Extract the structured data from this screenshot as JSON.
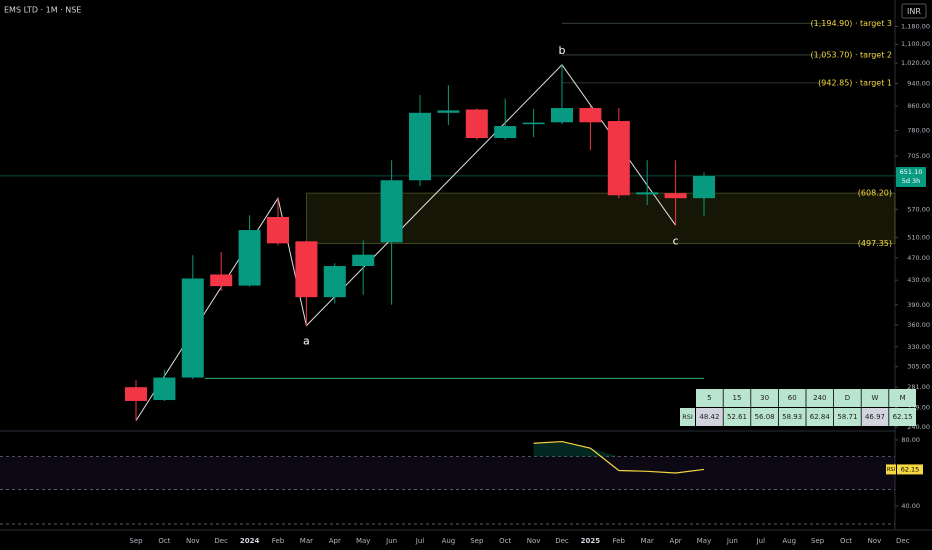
{
  "chart_data": {
    "type": "candlestick",
    "title": "EMS LTD · 1M · NSE",
    "currency": "INR",
    "yscale": "log",
    "ylim": [
      237,
      1311
    ],
    "yticks": [
      {
        "value": 1180,
        "label": "1,180.00"
      },
      {
        "value": 1100,
        "label": "1,100.00"
      },
      {
        "value": 1020,
        "label": "1,020.00"
      },
      {
        "value": 940,
        "label": "940.00"
      },
      {
        "value": 860,
        "label": "860.00"
      },
      {
        "value": 780,
        "label": "780.00"
      },
      {
        "value": 705,
        "label": "705.00"
      },
      {
        "value": 570,
        "label": "570.00"
      },
      {
        "value": 510,
        "label": "510.00"
      },
      {
        "value": 470,
        "label": "470.00"
      },
      {
        "value": 430,
        "label": "430.00"
      },
      {
        "value": 390,
        "label": "390.00"
      },
      {
        "value": 360,
        "label": "360.00"
      },
      {
        "value": 330,
        "label": "330.00"
      },
      {
        "value": 305,
        "label": "305.00"
      },
      {
        "value": 281,
        "label": "281.00"
      },
      {
        "value": 259,
        "label": "259.00"
      },
      {
        "value": 240,
        "label": "240.00"
      }
    ],
    "categories": [
      "Sep",
      "Oct",
      "Nov",
      "Dec",
      "2024",
      "Feb",
      "Mar",
      "Apr",
      "May",
      "Jun",
      "Jul",
      "Aug",
      "Sep",
      "Oct",
      "Nov",
      "Dec",
      "2025",
      "Feb",
      "Mar",
      "Apr",
      "May",
      "Jun",
      "Jul",
      "Aug",
      "Sep",
      "Oct",
      "Nov",
      "Dec"
    ],
    "open": [
      281,
      267,
      292,
      440,
      421,
      553,
      502,
      402,
      455,
      500,
      640,
      837,
      848,
      757,
      800,
      806,
      853,
      810,
      605,
      608,
      596,
      null,
      null,
      null,
      null,
      null,
      null,
      null
    ],
    "high": [
      289,
      301,
      475,
      481,
      557,
      596,
      503,
      460,
      504,
      693,
      898,
      934,
      851,
      886,
      850,
      1013,
      860,
      853,
      693,
      693,
      660,
      null,
      null,
      null,
      null,
      null,
      null,
      null
    ],
    "low": [
      246,
      266,
      290,
      412,
      419,
      494,
      359,
      392,
      406,
      390,
      625,
      797,
      752,
      752,
      760,
      800,
      721,
      596,
      580,
      535,
      556,
      null,
      null,
      null,
      null,
      null,
      null,
      null
    ],
    "close": [
      266,
      292,
      433,
      420,
      525,
      498,
      402,
      455,
      476,
      640,
      837,
      845,
      757,
      794,
      805,
      853,
      806,
      603,
      610,
      596,
      651.1,
      null,
      null,
      null,
      null,
      null,
      null,
      null
    ],
    "up_color": "#089981",
    "down_color": "#f23645",
    "last_price": {
      "value": 651.1,
      "label": "651.10",
      "countdown": "5d 3h"
    },
    "targets": [
      {
        "value": 1194.9,
        "label": "(1,194.90) · target 3",
        "start": 15
      },
      {
        "value": 1053.7,
        "label": "(1,053.70) · target 2",
        "start": 15
      },
      {
        "value": 942.85,
        "label": "(942.85) · target 1",
        "start": 15
      }
    ],
    "zone": {
      "top": 608.2,
      "bottom": 497.35,
      "top_label": "(608.20)",
      "bottom_label": "(497.35)",
      "start": 6
    },
    "support": {
      "value": 291,
      "start": 2,
      "end": 20
    },
    "zigzag": [
      {
        "index": 0,
        "price": 246
      },
      {
        "index": 5,
        "price": 596
      },
      {
        "index": 6,
        "price": 359
      },
      {
        "index": 15,
        "price": 1013
      },
      {
        "index": 19,
        "price": 535
      }
    ],
    "wave_labels": [
      {
        "text": "a",
        "index": 6,
        "price": 359
      },
      {
        "text": "b",
        "index": 15,
        "price": 1013
      },
      {
        "text": "c",
        "index": 19,
        "price": 535
      }
    ],
    "rsi_table": {
      "headers": [
        "5",
        "15",
        "30",
        "60",
        "240",
        "D",
        "W",
        "M"
      ],
      "row_label": "RSI",
      "values": [
        48.42,
        52.61,
        56.08,
        58.93,
        62.84,
        58.71,
        46.97,
        62.15
      ],
      "colors": [
        "#d1d4dc",
        "#b9e4cf",
        "#b9e4cf",
        "#b9e4cf",
        "#b9e4cf",
        "#b9e4cf",
        "#d1d4dc",
        "#b9e4cf"
      ]
    },
    "rsi": {
      "name": "RSI",
      "label": "62.15",
      "color": "#f5d742",
      "ylim": [
        28.5,
        84.8
      ],
      "yticks": [
        {
          "value": 80,
          "label": "80.00"
        },
        {
          "value": 40,
          "label": "40.00"
        }
      ],
      "bands": [
        70,
        50
      ],
      "values": [
        null,
        null,
        null,
        null,
        null,
        null,
        null,
        null,
        null,
        null,
        null,
        null,
        null,
        null,
        78,
        79,
        75,
        61.5,
        61,
        60,
        62.15,
        null,
        null,
        null,
        null,
        null,
        null,
        null
      ]
    }
  }
}
